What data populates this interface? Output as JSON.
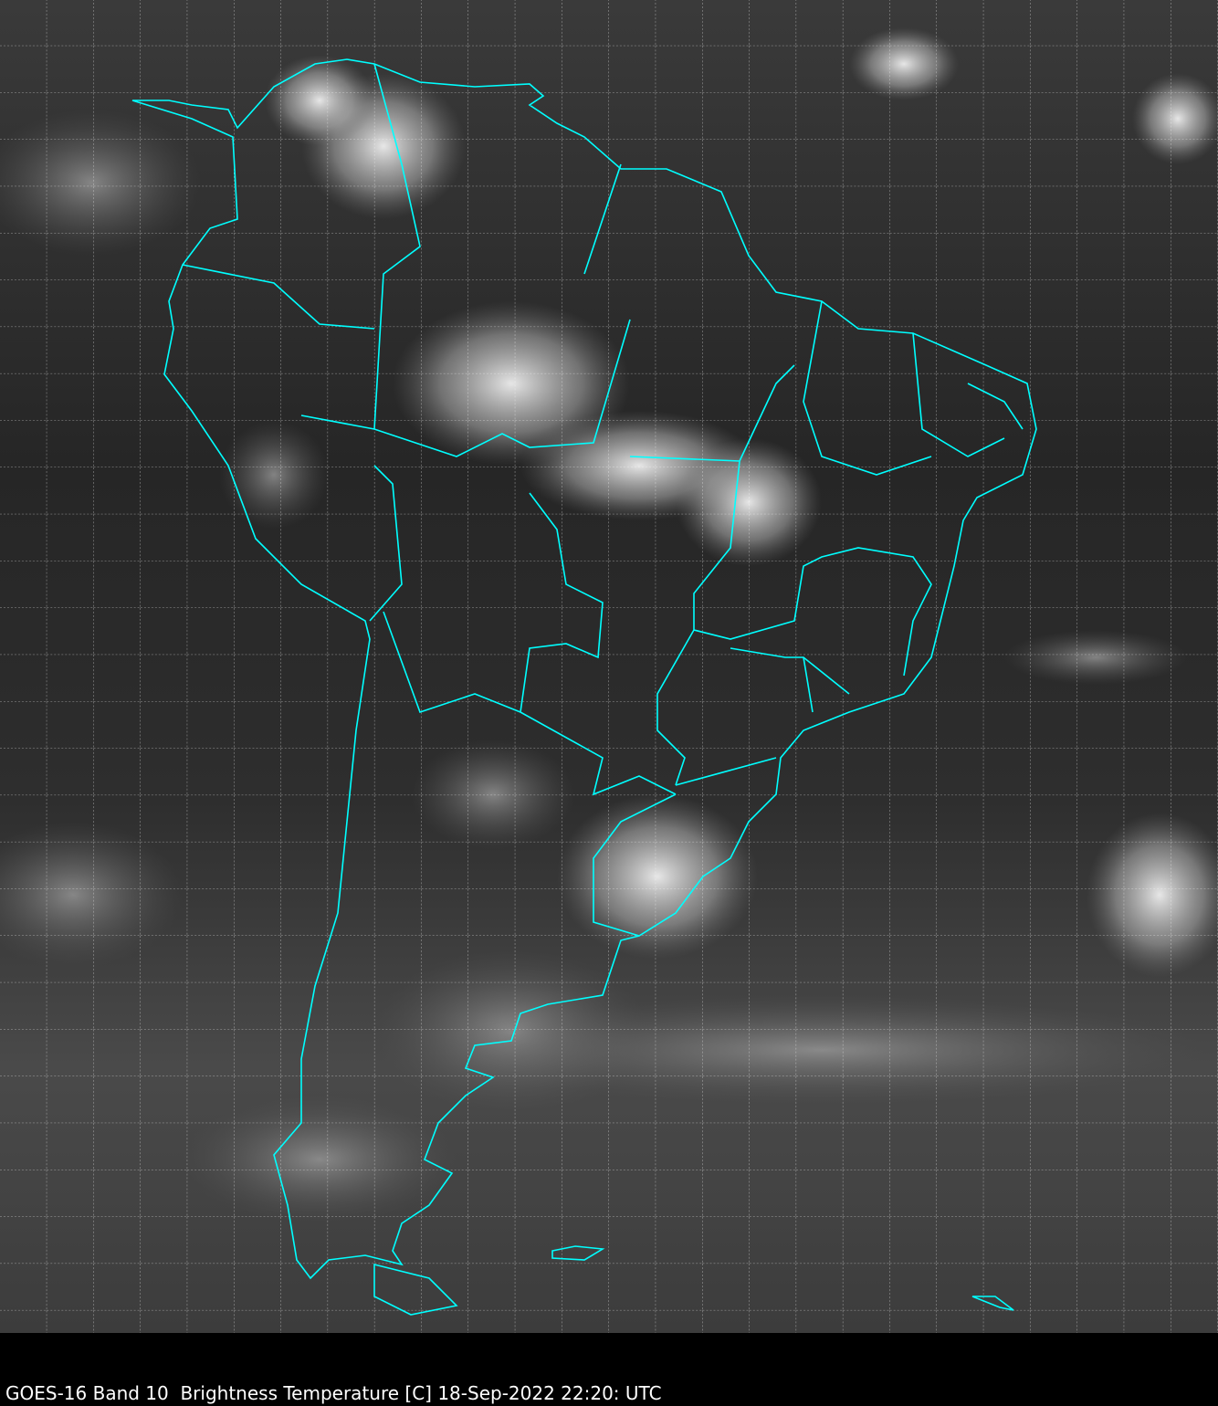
{
  "caption": "GOES-16 Band 10  Brightness Temperature [C] 18-Sep-2022 22:20: UTC",
  "colors": {
    "boundaries": "#00ffff",
    "grid": "#ffffff",
    "background": "#000000"
  },
  "imagery": {
    "satellite": "GOES-16",
    "band": "10",
    "colormap": "grayscale"
  }
}
